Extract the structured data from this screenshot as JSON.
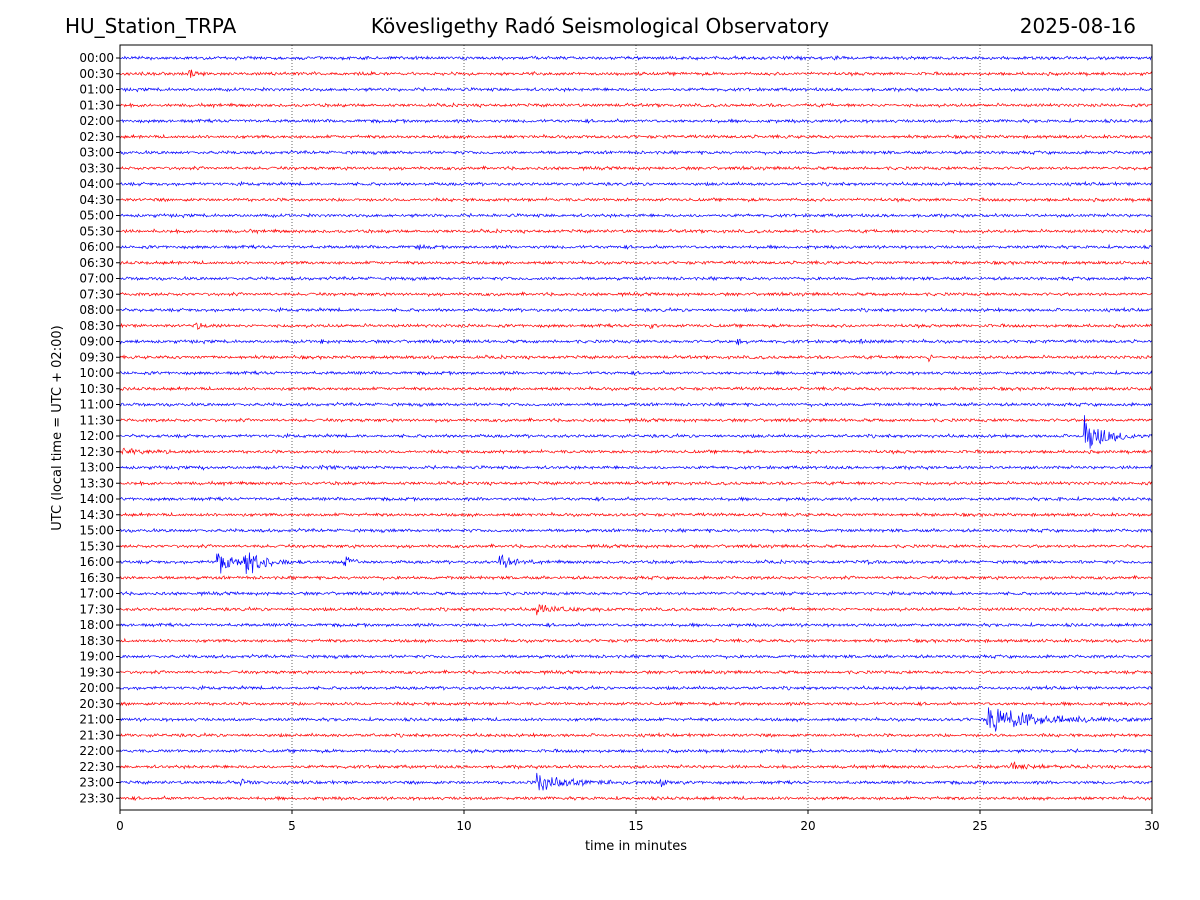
{
  "header": {
    "station": "HU_Station_TRPA",
    "title": "Kövesligethy Radó Seismological Observatory",
    "date": "2025-08-16"
  },
  "chart_data": {
    "type": "line",
    "xlabel": "time in minutes",
    "ylabel": "UTC (local time = UTC + 02:00)",
    "xlim": [
      0,
      30
    ],
    "x_ticks": [
      0,
      5,
      10,
      15,
      20,
      25,
      30
    ],
    "grid": "vertical dotted at major x ticks",
    "row_colors": [
      "#0000ff",
      "#ff0000"
    ],
    "rows": [
      "00:00",
      "00:30",
      "01:00",
      "01:30",
      "02:00",
      "02:30",
      "03:00",
      "03:30",
      "04:00",
      "04:30",
      "05:00",
      "05:30",
      "06:00",
      "06:30",
      "07:00",
      "07:30",
      "08:00",
      "08:30",
      "09:00",
      "09:30",
      "10:00",
      "10:30",
      "11:00",
      "11:30",
      "12:00",
      "12:30",
      "13:00",
      "13:30",
      "14:00",
      "14:30",
      "15:00",
      "15:30",
      "16:00",
      "16:30",
      "17:00",
      "17:30",
      "18:00",
      "18:30",
      "19:00",
      "19:30",
      "20:00",
      "20:30",
      "21:00",
      "21:30",
      "22:00",
      "22:30",
      "23:00",
      "23:30"
    ],
    "events": [
      {
        "row": "00:30",
        "start_min": 2.0,
        "duration_min": 0.6,
        "amplitude": 0.8
      },
      {
        "row": "05:30",
        "start_min": 3.7,
        "duration_min": 0.2,
        "amplitude": 0.5
      },
      {
        "row": "06:00",
        "start_min": 8.7,
        "duration_min": 0.4,
        "amplitude": 0.4
      },
      {
        "row": "08:30",
        "start_min": 2.2,
        "duration_min": 1.2,
        "amplitude": 0.4
      },
      {
        "row": "08:30",
        "start_min": 15.4,
        "duration_min": 0.4,
        "amplitude": 0.5
      },
      {
        "row": "09:00",
        "start_min": 5.8,
        "duration_min": 0.2,
        "amplitude": 0.5
      },
      {
        "row": "09:00",
        "start_min": 17.9,
        "duration_min": 0.5,
        "amplitude": 1.0
      },
      {
        "row": "09:00",
        "start_min": 21.5,
        "duration_min": 0.7,
        "amplitude": 0.3
      },
      {
        "row": "09:30",
        "start_min": 9.1,
        "duration_min": 0.2,
        "amplitude": 0.5
      },
      {
        "row": "09:30",
        "start_min": 23.5,
        "duration_min": 0.2,
        "amplitude": 1.2
      },
      {
        "row": "12:00",
        "start_min": 28.0,
        "duration_min": 2.0,
        "amplitude": 3.2
      },
      {
        "row": "12:30",
        "start_min": 0.0,
        "duration_min": 2.4,
        "amplitude": 0.5
      },
      {
        "row": "13:00",
        "start_min": 2.4,
        "duration_min": 0.2,
        "amplitude": 0.3
      },
      {
        "row": "13:00",
        "start_min": 5.8,
        "duration_min": 2.5,
        "amplitude": 0.2
      },
      {
        "row": "14:00",
        "start_min": 27.3,
        "duration_min": 0.2,
        "amplitude": 0.4
      },
      {
        "row": "16:00",
        "start_min": 2.8,
        "duration_min": 1.0,
        "amplitude": 3.2
      },
      {
        "row": "16:00",
        "start_min": 3.6,
        "duration_min": 1.8,
        "amplitude": 2.4
      },
      {
        "row": "16:00",
        "start_min": 6.5,
        "duration_min": 0.8,
        "amplitude": 1.2
      },
      {
        "row": "16:00",
        "start_min": 11.0,
        "duration_min": 1.2,
        "amplitude": 1.9
      },
      {
        "row": "16:00",
        "start_min": 21.7,
        "duration_min": 0.5,
        "amplitude": 0.3
      },
      {
        "row": "17:30",
        "start_min": 12.1,
        "duration_min": 2.8,
        "amplitude": 0.7
      },
      {
        "row": "20:30",
        "start_min": 17.9,
        "duration_min": 0.3,
        "amplitude": 0.3
      },
      {
        "row": "21:00",
        "start_min": 25.2,
        "duration_min": 4.8,
        "amplitude": 2.2
      },
      {
        "row": "22:30",
        "start_min": 25.9,
        "duration_min": 1.6,
        "amplitude": 0.5
      },
      {
        "row": "23:00",
        "start_min": 3.5,
        "duration_min": 0.8,
        "amplitude": 0.5
      },
      {
        "row": "23:00",
        "start_min": 12.1,
        "duration_min": 3.2,
        "amplitude": 1.3
      },
      {
        "row": "23:00",
        "start_min": 15.7,
        "duration_min": 0.8,
        "amplitude": 0.6
      }
    ]
  }
}
